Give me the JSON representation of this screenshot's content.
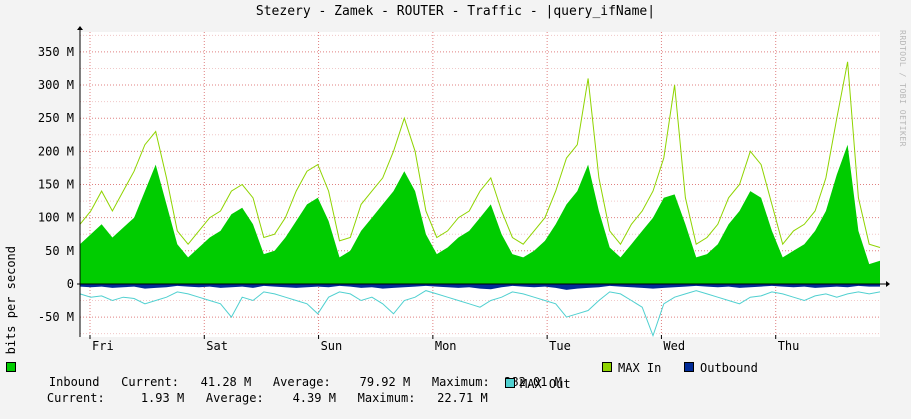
{
  "title": "Stezery - Zamek - ROUTER - Traffic - |query_ifName|",
  "watermark": "RRDTOOL / TOBI OETIKER",
  "colors": {
    "inbound": "#00cc00",
    "max_in": "#8fd400",
    "outbound": "#002a97",
    "max_out": "#50d0d0",
    "grid": "#e08080",
    "axis": "#000000",
    "canvas": "#ffffff",
    "background": "#f3f3f3"
  },
  "legend": {
    "inbound": {
      "label": "Inbound",
      "current_label": "Current:",
      "current": "41.28 M",
      "average_label": "Average:",
      "average": "79.92 M",
      "maximum_label": "Maximum:",
      "maximum": "282.01 M"
    },
    "max_in_label": "MAX In",
    "outbound_label": "Outbound",
    "outbound": {
      "current_label": "Current:",
      "current": "1.93 M",
      "average_label": "Average:",
      "average": "4.39 M",
      "maximum_label": "Maximum:",
      "maximum": "22.71 M"
    },
    "max_out_label": "MAX Out"
  },
  "chart_data": {
    "type": "area",
    "title": "Stezery - Zamek - ROUTER - Traffic - |query_ifName|",
    "ylabel": "bits per second",
    "xlabel": "",
    "ylim": [
      -80,
      380
    ],
    "yticks": [
      {
        "value": 350,
        "label": "350 M"
      },
      {
        "value": 300,
        "label": "300 M"
      },
      {
        "value": 250,
        "label": "250 M"
      },
      {
        "value": 200,
        "label": "200 M"
      },
      {
        "value": 150,
        "label": "150 M"
      },
      {
        "value": 100,
        "label": "100 M"
      },
      {
        "value": 50,
        "label": "50 M"
      },
      {
        "value": 0,
        "label": "0"
      },
      {
        "value": -50,
        "label": "-50 M"
      }
    ],
    "xticks": [
      "Fri",
      "Sat",
      "Sun",
      "Mon",
      "Tue",
      "Wed",
      "Thu"
    ],
    "grid": true,
    "legend_position": "bottom",
    "series": [
      {
        "name": "Inbound",
        "color": "#00cc00",
        "values": [
          60,
          75,
          90,
          70,
          85,
          100,
          140,
          180,
          120,
          60,
          40,
          55,
          70,
          80,
          105,
          115,
          90,
          45,
          50,
          70,
          95,
          120,
          130,
          95,
          40,
          50,
          80,
          100,
          120,
          140,
          170,
          140,
          75,
          45,
          55,
          70,
          80,
          100,
          120,
          75,
          45,
          40,
          50,
          65,
          90,
          120,
          140,
          180,
          110,
          55,
          40,
          60,
          80,
          100,
          130,
          135,
          90,
          40,
          45,
          60,
          90,
          110,
          140,
          130,
          80,
          40,
          50,
          60,
          80,
          110,
          165,
          210,
          80,
          30,
          35
        ]
      },
      {
        "name": "MAX In",
        "color": "#8fd400",
        "values": [
          90,
          110,
          140,
          110,
          140,
          170,
          210,
          230,
          160,
          80,
          60,
          80,
          100,
          110,
          140,
          150,
          130,
          70,
          75,
          100,
          140,
          170,
          180,
          140,
          65,
          70,
          120,
          140,
          160,
          200,
          250,
          200,
          110,
          70,
          80,
          100,
          110,
          140,
          160,
          110,
          70,
          60,
          80,
          100,
          140,
          190,
          210,
          310,
          160,
          80,
          60,
          90,
          110,
          140,
          190,
          300,
          130,
          60,
          70,
          90,
          130,
          150,
          200,
          180,
          120,
          60,
          80,
          90,
          110,
          160,
          250,
          335,
          130,
          60,
          55
        ]
      },
      {
        "name": "Outbound",
        "color": "#002a97",
        "values": [
          -4,
          -5,
          -4,
          -6,
          -5,
          -4,
          -7,
          -6,
          -5,
          -3,
          -4,
          -5,
          -4,
          -6,
          -5,
          -4,
          -6,
          -3,
          -4,
          -5,
          -6,
          -5,
          -4,
          -5,
          -3,
          -4,
          -6,
          -5,
          -7,
          -6,
          -5,
          -4,
          -3,
          -4,
          -5,
          -6,
          -5,
          -7,
          -8,
          -5,
          -3,
          -4,
          -5,
          -4,
          -6,
          -9,
          -7,
          -6,
          -5,
          -3,
          -4,
          -5,
          -6,
          -7,
          -6,
          -5,
          -4,
          -3,
          -4,
          -5,
          -4,
          -6,
          -5,
          -4,
          -3,
          -4,
          -5,
          -4,
          -6,
          -5,
          -4,
          -5,
          -3,
          -4,
          -4
        ]
      },
      {
        "name": "MAX Out",
        "color": "#50d0d0",
        "values": [
          -15,
          -20,
          -18,
          -25,
          -20,
          -22,
          -30,
          -25,
          -20,
          -12,
          -15,
          -20,
          -25,
          -30,
          -50,
          -20,
          -25,
          -12,
          -15,
          -20,
          -25,
          -30,
          -45,
          -20,
          -12,
          -15,
          -25,
          -20,
          -30,
          -45,
          -25,
          -20,
          -10,
          -15,
          -20,
          -25,
          -30,
          -35,
          -25,
          -20,
          -12,
          -15,
          -20,
          -25,
          -30,
          -50,
          -45,
          -40,
          -25,
          -12,
          -15,
          -25,
          -35,
          -78,
          -30,
          -20,
          -15,
          -10,
          -15,
          -20,
          -25,
          -30,
          -20,
          -18,
          -12,
          -15,
          -20,
          -25,
          -18,
          -15,
          -20,
          -15,
          -12,
          -15,
          -12
        ]
      }
    ]
  }
}
